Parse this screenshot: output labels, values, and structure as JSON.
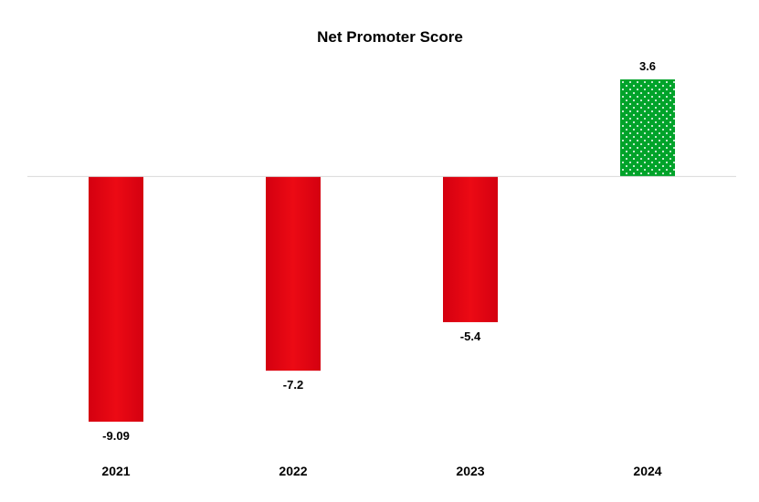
{
  "chart_data": {
    "type": "bar",
    "title": "Net Promoter Score",
    "xlabel": "",
    "ylabel": "",
    "categories": [
      "2021",
      "2022",
      "2023",
      "2024"
    ],
    "values": [
      -9.09,
      -7.2,
      -5.4,
      3.6
    ],
    "data_labels": [
      "-9.09",
      "-7.2",
      "-5.4",
      "3.6"
    ],
    "ylim": [
      -9.5,
      4
    ],
    "grid": false,
    "legend": "none",
    "colors": {
      "negative": "#e30613",
      "negative_dark": "#c8000a",
      "positive": "#00a32a",
      "positive_dots": "#ffffff",
      "zero_line": "#d9d9d9"
    },
    "bar_styles": [
      "solid",
      "solid",
      "solid",
      "dotted"
    ]
  }
}
